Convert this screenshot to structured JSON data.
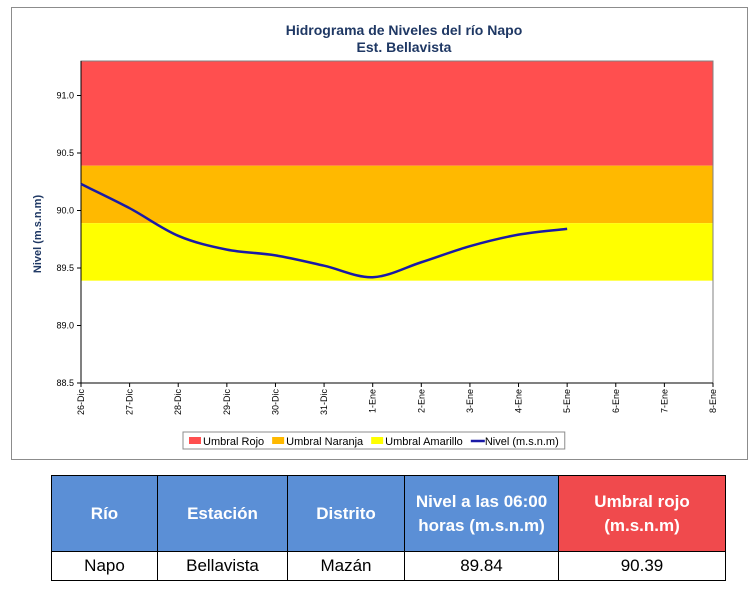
{
  "chart_data": {
    "type": "line",
    "title": "Hidrograma de Niveles del río Napo",
    "subtitle": "Est. Bellavista",
    "ylabel": "Nivel (m.s.n.m)",
    "xlabel": "",
    "ylim": [
      88.5,
      91.3
    ],
    "yticks": [
      "88.5",
      "89.0",
      "89.5",
      "90.0",
      "90.5",
      "91.0"
    ],
    "categories": [
      "26-Dic",
      "27-Dic",
      "28-Dic",
      "29-Dic",
      "30-Dic",
      "31-Dic",
      "1-Ene",
      "2-Ene",
      "3-Ene",
      "4-Ene",
      "5-Ene",
      "6-Ene",
      "7-Ene",
      "8-Ene"
    ],
    "bands": [
      {
        "name": "Umbral Rojo",
        "from": 90.39,
        "to": 91.3,
        "color": "#ff4f4f"
      },
      {
        "name": "Umbral Naranja",
        "from": 89.89,
        "to": 90.39,
        "color": "#ffb900"
      },
      {
        "name": "Umbral Amarillo",
        "from": 89.39,
        "to": 89.89,
        "color": "#ffff00"
      }
    ],
    "series": [
      {
        "name": "Nivel (m.s.n.m)",
        "color": "#1a1aa6",
        "values": [
          90.23,
          90.02,
          89.78,
          89.66,
          89.61,
          89.52,
          89.42,
          89.55,
          89.69,
          89.79,
          89.84,
          null,
          null,
          null
        ]
      }
    ],
    "grid": false,
    "legend_position": "bottom"
  },
  "table": {
    "headers": [
      "Río",
      "Estación",
      "Distrito",
      "Nivel a las 06:00 horas (m.s.n.m)",
      "Umbral rojo (m.s.n.m)"
    ],
    "row": [
      "Napo",
      "Bellavista",
      "Mazán",
      "89.84",
      "90.39"
    ]
  }
}
